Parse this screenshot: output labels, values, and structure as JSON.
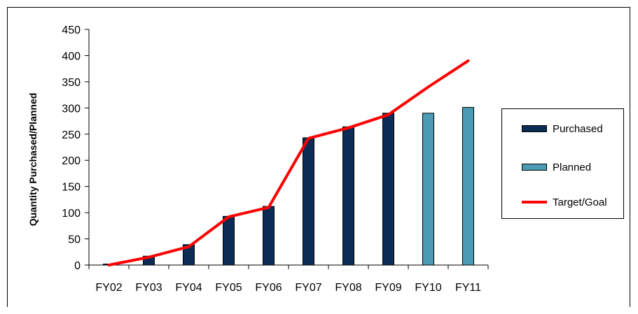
{
  "chart_data": {
    "type": "bar",
    "categories": [
      "FY02",
      "FY03",
      "FY04",
      "FY05",
      "FY06",
      "FY07",
      "FY08",
      "FY09",
      "FY10",
      "FY11"
    ],
    "series": [
      {
        "name": "Purchased",
        "kind": "bar",
        "color": "#0d2c54",
        "values": [
          2,
          17,
          39,
          93,
          112,
          243,
          264,
          290,
          null,
          null
        ]
      },
      {
        "name": "Planned",
        "kind": "bar",
        "color": "#4a9bb3",
        "values": [
          null,
          null,
          null,
          null,
          null,
          null,
          null,
          null,
          290,
          301
        ]
      },
      {
        "name": "Target/Goal",
        "kind": "line",
        "color": "#ff0000",
        "values": [
          0,
          15,
          35,
          92,
          110,
          242,
          262,
          287,
          340,
          390
        ]
      }
    ],
    "title": "",
    "xlabel": "",
    "ylabel": "Quantity Purchased/Planned",
    "ylim": [
      0,
      450
    ],
    "yticks": [
      "0",
      "50",
      "100",
      "150",
      "200",
      "250",
      "300",
      "350",
      "400",
      "450"
    ],
    "grid": false,
    "legend": "right"
  }
}
